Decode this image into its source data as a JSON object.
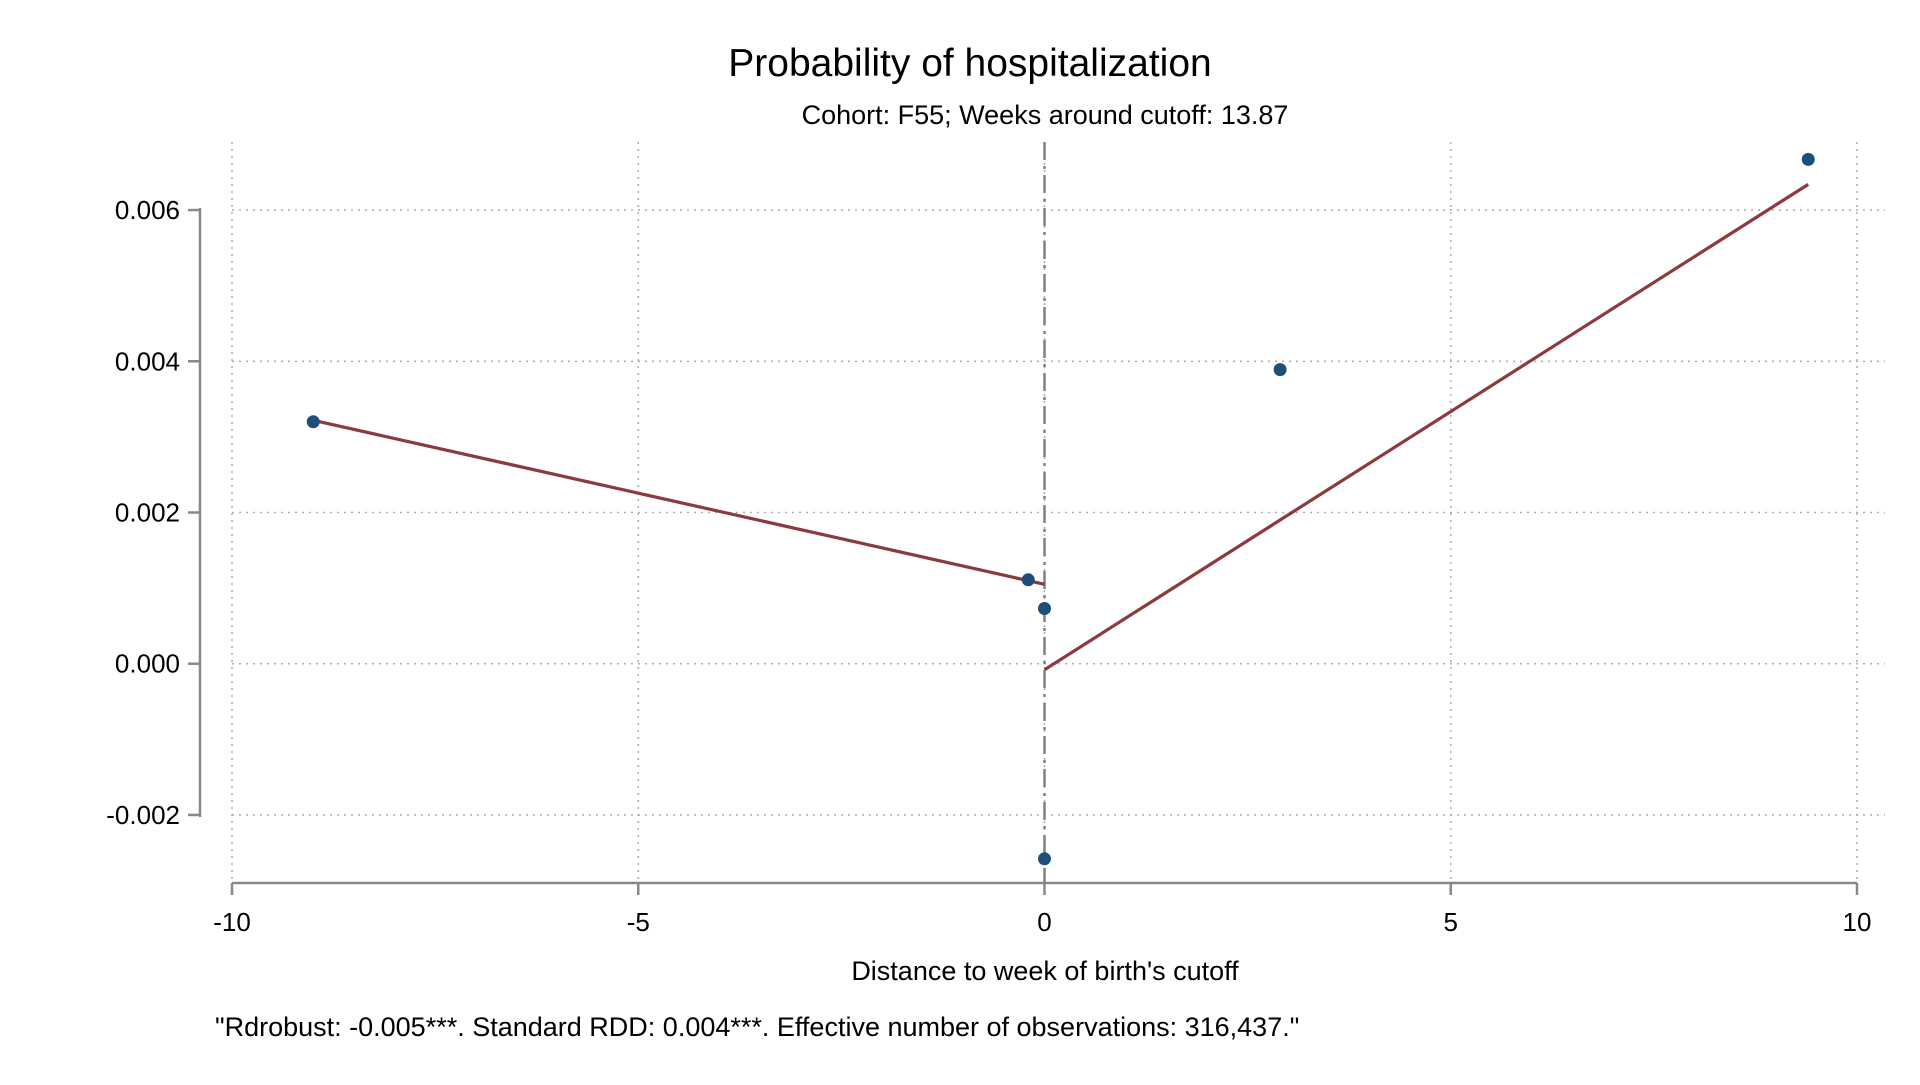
{
  "chart_data": {
    "type": "scatter",
    "title": "Probability of hospitalization",
    "subtitle": "Cohort: F55; Weeks around cutoff:   13.87",
    "xlabel": "Distance to week of birth's cutoff",
    "ylabel": "",
    "note": "\"Rdrobust: -0.005***. Standard RDD: 0.004***. Effective number of observations: 316,437.\"",
    "xlim": [
      -10,
      10
    ],
    "ylim": [
      -0.0029,
      0.0069
    ],
    "x_ticks": [
      -10,
      -5,
      0,
      5,
      10
    ],
    "x_tick_labels": [
      "-10",
      "-5",
      "0",
      "5",
      "10"
    ],
    "y_ticks": [
      -0.002,
      0.0,
      0.002,
      0.004,
      0.006
    ],
    "y_tick_labels": [
      "-0.002",
      "0.000",
      "0.002",
      "0.004",
      "0.006"
    ],
    "grid": true,
    "cutoff_x": 0,
    "points": [
      {
        "x": -9.0,
        "y": 0.0032
      },
      {
        "x": -0.2,
        "y": 0.00111
      },
      {
        "x": 0.0,
        "y": 0.00073
      },
      {
        "x": 0.0,
        "y": -0.00258
      },
      {
        "x": 2.9,
        "y": 0.00389
      },
      {
        "x": 9.4,
        "y": 0.00667
      }
    ],
    "fit_lines": [
      {
        "x": [
          -9.0,
          0.0
        ],
        "y": [
          0.00322,
          0.00105
        ]
      },
      {
        "x": [
          0.0,
          9.4
        ],
        "y": [
          -8e-05,
          0.00634
        ]
      }
    ],
    "colors": {
      "points": "#1f4e79",
      "fit": "#8b3a3e",
      "axis": "#888888",
      "grid": "#b0b0b0",
      "cutoff": "#808080"
    }
  }
}
